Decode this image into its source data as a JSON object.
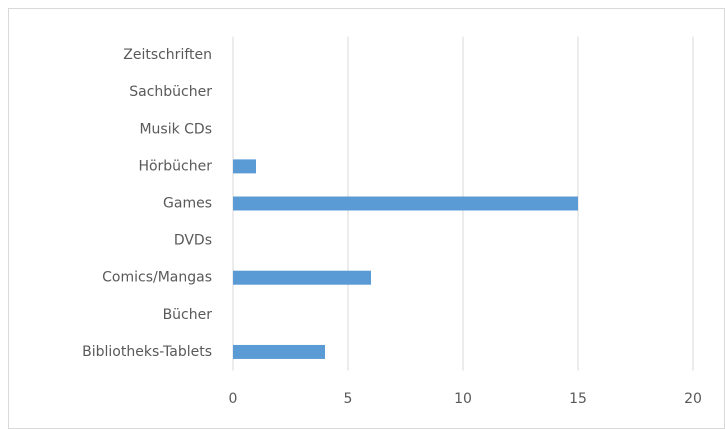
{
  "chart_data": {
    "type": "bar",
    "orientation": "horizontal",
    "categories": [
      "Bibliotheks-Tablets",
      "Bücher",
      "Comics/Mangas",
      "DVDs",
      "Games",
      "Hörbücher",
      "Musik CDs",
      "Sachbücher",
      "Zeitschriften"
    ],
    "values": [
      4,
      0,
      6,
      0,
      15,
      1,
      0,
      0,
      0
    ],
    "color": "#5b9bd5",
    "xlim": [
      0,
      20
    ],
    "xticks": [
      0,
      5,
      10,
      15,
      20
    ],
    "grid": true
  }
}
